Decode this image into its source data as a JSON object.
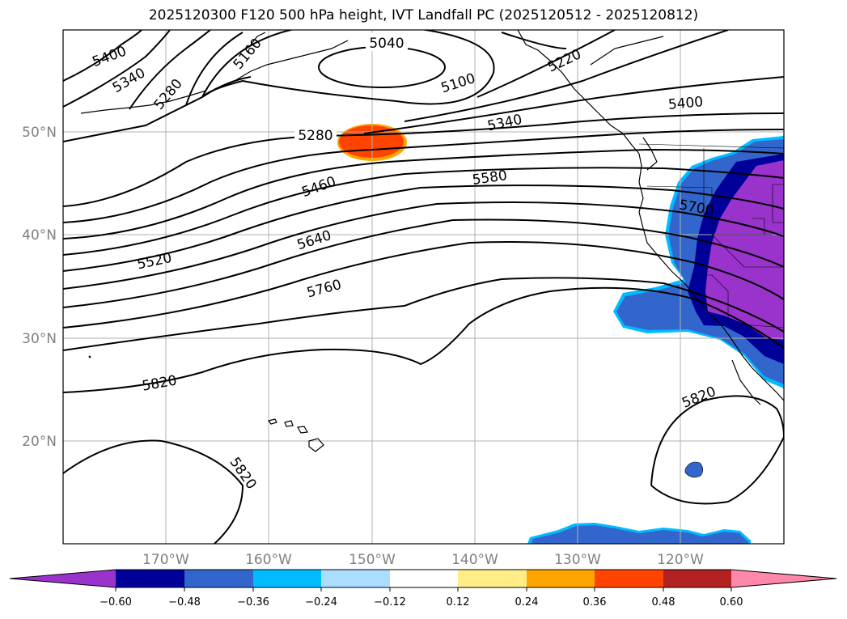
{
  "title": "2025120300 F120 500 hPa height, IVT Landfall PC (2025120512 - 2025120812)",
  "map": {
    "lat_labels": [
      "50°N",
      "40°N",
      "30°N",
      "20°N"
    ],
    "lon_labels": [
      "170°W",
      "160°W",
      "150°W",
      "140°W",
      "130°W",
      "120°W"
    ],
    "contour_labels": [
      {
        "id": "c5040",
        "text": "5040"
      },
      {
        "id": "c5100a",
        "text": "5100"
      },
      {
        "id": "c5160",
        "text": "5160"
      },
      {
        "id": "c5220",
        "text": "5220"
      },
      {
        "id": "c5280a",
        "text": "5280"
      },
      {
        "id": "c5280b",
        "text": "5280"
      },
      {
        "id": "c5340a",
        "text": "5340"
      },
      {
        "id": "c5340b",
        "text": "5340"
      },
      {
        "id": "c5400a",
        "text": "5400"
      },
      {
        "id": "c5400b",
        "text": "5400"
      },
      {
        "id": "c5460",
        "text": "5460"
      },
      {
        "id": "c5520",
        "text": "5520"
      },
      {
        "id": "c5580",
        "text": "5580"
      },
      {
        "id": "c5640",
        "text": "5640"
      },
      {
        "id": "c5700",
        "text": "5700"
      },
      {
        "id": "c5760",
        "text": "5760"
      },
      {
        "id": "c5820a",
        "text": "5820"
      },
      {
        "id": "c5820b",
        "text": "5820"
      },
      {
        "id": "c5820c",
        "text": "5820"
      }
    ]
  },
  "colorbar": {
    "ticks": [
      "−0.60",
      "−0.48",
      "−0.36",
      "−0.24",
      "−0.12",
      "0.12",
      "0.24",
      "0.36",
      "0.48",
      "0.60"
    ],
    "colors": [
      "#9933cc",
      "#000099",
      "#3366cc",
      "#00bbff",
      "#aaddff",
      "#ffffff",
      "#ffee88",
      "#ffa500",
      "#ff4400",
      "#b22222",
      "#ff88aa"
    ]
  }
}
